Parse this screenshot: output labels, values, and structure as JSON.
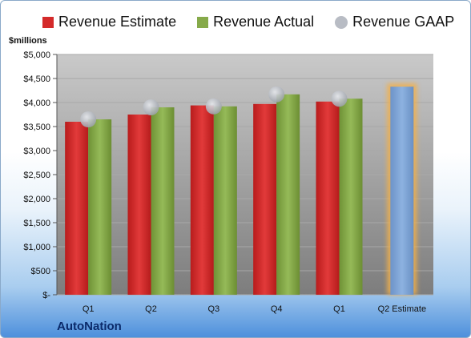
{
  "chart_data": {
    "type": "bar",
    "title": "",
    "ylabel": "$millions",
    "ylim": [
      0,
      5000
    ],
    "yticks": [
      0,
      500,
      1000,
      1500,
      2000,
      2500,
      3000,
      3500,
      4000,
      4500,
      5000
    ],
    "ytick_labels": [
      "$-",
      "$500",
      "$1,000",
      "$1,500",
      "$2,000",
      "$2,500",
      "$3,000",
      "$3,500",
      "$4,000",
      "$4,500",
      "$5,000"
    ],
    "categories": [
      "Q1",
      "Q2",
      "Q3",
      "Q4",
      "Q1",
      "Q2 Estimate"
    ],
    "series": [
      {
        "name": "Revenue Estimate",
        "color": "#d42a2a",
        "values": [
          3600,
          3750,
          3940,
          3970,
          4020,
          null
        ]
      },
      {
        "name": "Revenue Actual",
        "color": "#86aa4a",
        "values": [
          3650,
          3900,
          3920,
          4170,
          4080,
          null
        ]
      },
      {
        "name": "Revenue GAAP",
        "color": "#b8bcc4",
        "marker": "circle",
        "values": [
          3650,
          3900,
          3920,
          4170,
          4080,
          null
        ]
      }
    ],
    "projection": {
      "category": "Q2 Estimate",
      "value": 4330,
      "color": "#7ea4d6",
      "glow": "#f3b04a"
    },
    "grid": true,
    "legend": "top"
  },
  "company": "AutoNation"
}
